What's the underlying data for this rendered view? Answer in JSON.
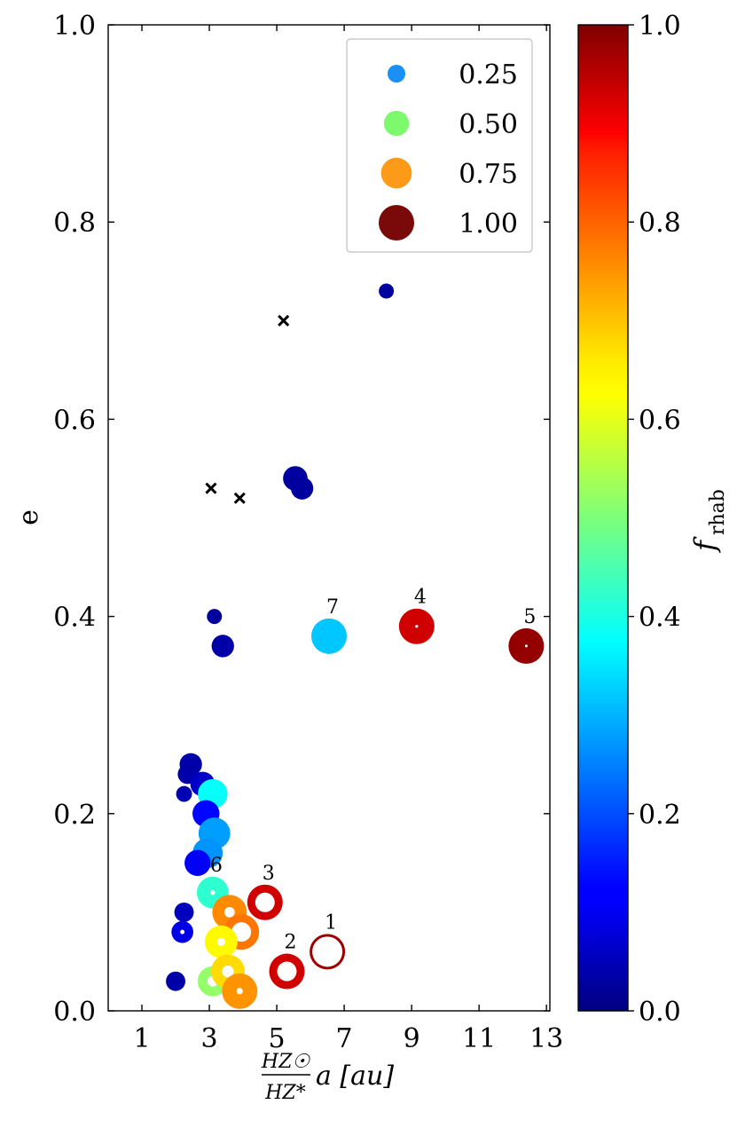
{
  "chart_data": {
    "type": "scatter",
    "xlabel": "HZ☉/HZ* a [au]",
    "xlabel_parts": {
      "numerator": "HZ☉",
      "denominator": "HZ*",
      "rest": "a [au]"
    },
    "ylabel": "e",
    "colorbar_label": "f_rhab",
    "colorbar_label_parts": {
      "f": "f",
      "sub": "rhab"
    },
    "xlim": [
      0,
      13.1
    ],
    "ylim": [
      0,
      1.0
    ],
    "xticks": [
      "1",
      "3",
      "5",
      "7",
      "9",
      "11",
      "13"
    ],
    "yticks": [
      "0.0",
      "0.2",
      "0.4",
      "0.6",
      "0.8",
      "1.0"
    ],
    "cbar_ticks": [
      "0.0",
      "0.2",
      "0.4",
      "0.6",
      "0.8",
      "1.0"
    ],
    "colormap": "jet",
    "legend": {
      "placement": "top-right",
      "entries": [
        {
          "label": "0.25",
          "size": 0.25,
          "color": "#1a8ff5"
        },
        {
          "label": "0.50",
          "size": 0.5,
          "color": "#7dfa6c"
        },
        {
          "label": "0.75",
          "size": 0.75,
          "color": "#fd9a17"
        },
        {
          "label": "1.00",
          "size": 1.0,
          "color": "#7a0909"
        }
      ]
    },
    "points": [
      {
        "x": 8.25,
        "y": 0.73,
        "size": 0.18,
        "f": 0.03,
        "hole": 0
      },
      {
        "x": 5.55,
        "y": 0.54,
        "size": 0.48,
        "f": 0.03,
        "hole": 0
      },
      {
        "x": 5.75,
        "y": 0.53,
        "size": 0.4,
        "f": 0.03,
        "hole": 0
      },
      {
        "x": 3.15,
        "y": 0.4,
        "size": 0.18,
        "f": 0.03,
        "hole": 0
      },
      {
        "x": 3.4,
        "y": 0.37,
        "size": 0.4,
        "f": 0.04,
        "hole": 0
      },
      {
        "x": 6.55,
        "y": 0.38,
        "size": 1.0,
        "f": 0.32,
        "hole": 0,
        "label": "7"
      },
      {
        "x": 9.15,
        "y": 0.39,
        "size": 1.0,
        "f": 0.92,
        "hole": 0.08,
        "label": "4"
      },
      {
        "x": 12.4,
        "y": 0.37,
        "size": 1.0,
        "f": 0.98,
        "hole": 0.05,
        "label": "5"
      },
      {
        "x": 2.45,
        "y": 0.25,
        "size": 0.4,
        "f": 0.04,
        "hole": 0
      },
      {
        "x": 2.35,
        "y": 0.24,
        "size": 0.3,
        "f": 0.04,
        "hole": 0
      },
      {
        "x": 2.25,
        "y": 0.22,
        "size": 0.2,
        "f": 0.05,
        "hole": 0
      },
      {
        "x": 2.8,
        "y": 0.23,
        "size": 0.48,
        "f": 0.07,
        "hole": 0
      },
      {
        "x": 3.1,
        "y": 0.22,
        "size": 0.7,
        "f": 0.38,
        "hole": 0
      },
      {
        "x": 2.9,
        "y": 0.2,
        "size": 0.58,
        "f": 0.13,
        "hole": 0
      },
      {
        "x": 3.15,
        "y": 0.18,
        "size": 0.8,
        "f": 0.28,
        "hole": 0
      },
      {
        "x": 2.95,
        "y": 0.16,
        "size": 0.72,
        "f": 0.27,
        "hole": 0
      },
      {
        "x": 2.65,
        "y": 0.15,
        "size": 0.54,
        "f": 0.12,
        "hole": 0
      },
      {
        "x": 3.1,
        "y": 0.12,
        "size": 0.8,
        "f": 0.42,
        "hole": 0.15,
        "label": "6"
      },
      {
        "x": 3.6,
        "y": 0.1,
        "size": 0.95,
        "f": 0.74,
        "hole": 0.3
      },
      {
        "x": 3.95,
        "y": 0.08,
        "size": 1.0,
        "f": 0.76,
        "hole": 0.55
      },
      {
        "x": 3.35,
        "y": 0.07,
        "size": 0.85,
        "f": 0.63,
        "hole": 0.25
      },
      {
        "x": 4.65,
        "y": 0.11,
        "size": 1.0,
        "f": 0.92,
        "hole": 0.55,
        "label": "3"
      },
      {
        "x": 2.25,
        "y": 0.1,
        "size": 0.3,
        "f": 0.06,
        "hole": 0
      },
      {
        "x": 2.2,
        "y": 0.08,
        "size": 0.38,
        "f": 0.1,
        "hole": 0.2
      },
      {
        "x": 2.0,
        "y": 0.03,
        "size": 0.3,
        "f": 0.04,
        "hole": 0
      },
      {
        "x": 3.1,
        "y": 0.03,
        "size": 0.72,
        "f": 0.52,
        "hole": 0.35
      },
      {
        "x": 3.55,
        "y": 0.04,
        "size": 0.9,
        "f": 0.66,
        "hole": 0.35
      },
      {
        "x": 3.9,
        "y": 0.02,
        "size": 1.0,
        "f": 0.73,
        "hole": 0.18
      },
      {
        "x": 5.3,
        "y": 0.04,
        "size": 1.0,
        "f": 0.92,
        "hole": 0.55,
        "label": "2"
      },
      {
        "x": 6.5,
        "y": 0.06,
        "size": 1.0,
        "f": 0.97,
        "hole": 0.85,
        "label": "1"
      }
    ],
    "crosses": [
      {
        "x": 5.2,
        "y": 0.7
      },
      {
        "x": 3.05,
        "y": 0.53
      },
      {
        "x": 3.9,
        "y": 0.52
      }
    ]
  }
}
